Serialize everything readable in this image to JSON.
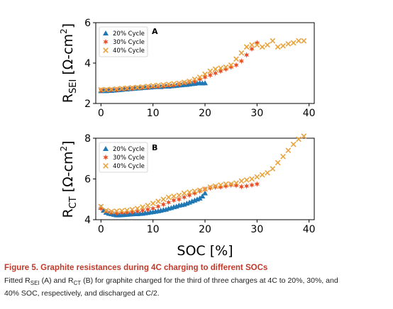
{
  "caption": {
    "title": "Figure 5.  Graphite resistances during 4C charging to different SOCs",
    "body_line1_pre": "Fitted R",
    "sub_sei": "SEI",
    "body_line1_mid": " (A) and R",
    "sub_ct": "CT",
    "body_line1_post": " (B) for graphite charged for the third of three charges at 4C to 20%, 30%, and",
    "body_line2": "40% SOC, respectively, and discharged at C/2."
  },
  "colors": {
    "c20": "#1f77b4",
    "c30": "#e8522a",
    "c40": "#e8a33d"
  },
  "chart_data": [
    {
      "type": "scatter",
      "panel_label": "A",
      "ylabel_main": "R",
      "ylabel_sub": "SEI",
      "ylabel_unit": " [Ω-cm",
      "ylabel_sup": "2",
      "ylabel_close": "]",
      "xlabel": "",
      "xlim": [
        -1,
        41
      ],
      "ylim": [
        2,
        6
      ],
      "xticks": [
        "0",
        "10",
        "20",
        "30",
        "40"
      ],
      "xtick_values": [
        0,
        10,
        20,
        30,
        40
      ],
      "yticks": [
        "2",
        "4",
        "6"
      ],
      "ytick_values": [
        2,
        4,
        6
      ],
      "legend_position": "top-left",
      "series": [
        {
          "name": "20% Cycle",
          "marker": "triangle",
          "color": "#1f77b4",
          "x": [
            0,
            0.5,
            1,
            1.5,
            2,
            2.5,
            3,
            3.5,
            4,
            4.5,
            5,
            5.5,
            6,
            6.5,
            7,
            7.5,
            8,
            8.5,
            9,
            9.5,
            10,
            10.5,
            11,
            11.5,
            12,
            12.5,
            13,
            13.5,
            14,
            14.5,
            15,
            15.5,
            16,
            16.5,
            17,
            17.5,
            18,
            18.5,
            19,
            19.5,
            20
          ],
          "y": [
            2.62,
            2.63,
            2.62,
            2.64,
            2.63,
            2.65,
            2.66,
            2.67,
            2.68,
            2.7,
            2.7,
            2.72,
            2.73,
            2.74,
            2.75,
            2.76,
            2.77,
            2.78,
            2.79,
            2.8,
            2.81,
            2.82,
            2.83,
            2.82,
            2.84,
            2.85,
            2.84,
            2.86,
            2.87,
            2.88,
            2.9,
            2.91,
            2.92,
            2.93,
            2.95,
            2.97,
            2.98,
            3.0,
            3.02,
            3.0,
            3.01
          ]
        },
        {
          "name": "30% Cycle",
          "marker": "star",
          "color": "#e8522a",
          "x": [
            0,
            1,
            2,
            3,
            4,
            5,
            6,
            7,
            8,
            9,
            10,
            11,
            12,
            13,
            14,
            15,
            16,
            17,
            18,
            19,
            20,
            21,
            22,
            23,
            24,
            25,
            26,
            27,
            28,
            29,
            30
          ],
          "y": [
            2.65,
            2.66,
            2.67,
            2.68,
            2.7,
            2.72,
            2.74,
            2.76,
            2.78,
            2.8,
            2.82,
            2.84,
            2.86,
            2.88,
            2.9,
            2.95,
            3.0,
            3.05,
            3.1,
            3.2,
            3.3,
            3.4,
            3.5,
            3.6,
            3.7,
            3.8,
            3.9,
            4.1,
            4.4,
            4.7,
            5.0
          ]
        },
        {
          "name": "40% Cycle",
          "marker": "x",
          "color": "#e8a33d",
          "x": [
            0,
            1,
            2,
            3,
            4,
            5,
            6,
            7,
            8,
            9,
            10,
            11,
            12,
            13,
            14,
            15,
            16,
            17,
            18,
            19,
            20,
            21,
            22,
            23,
            24,
            25,
            26,
            27,
            28,
            29,
            30,
            31,
            32,
            33,
            34,
            35,
            36,
            37,
            38,
            39
          ],
          "y": [
            2.68,
            2.69,
            2.7,
            2.72,
            2.74,
            2.76,
            2.78,
            2.8,
            2.82,
            2.85,
            2.88,
            2.9,
            2.92,
            2.95,
            2.98,
            3.0,
            3.05,
            3.1,
            3.2,
            3.3,
            3.45,
            3.6,
            3.7,
            3.75,
            3.8,
            3.9,
            4.2,
            4.5,
            4.8,
            4.9,
            4.9,
            4.8,
            4.9,
            5.1,
            4.8,
            4.85,
            4.95,
            5.0,
            5.1,
            5.1
          ]
        }
      ]
    },
    {
      "type": "scatter",
      "panel_label": "B",
      "ylabel_main": "R",
      "ylabel_sub": "CT",
      "ylabel_unit": " [Ω-cm",
      "ylabel_sup": "2",
      "ylabel_close": "]",
      "xlabel": "SOC [%]",
      "xlim": [
        -1,
        41
      ],
      "ylim": [
        4,
        8
      ],
      "xticks": [
        "0",
        "10",
        "20",
        "30",
        "40"
      ],
      "xtick_values": [
        0,
        10,
        20,
        30,
        40
      ],
      "yticks": [
        "4",
        "6",
        "8"
      ],
      "ytick_values": [
        4,
        6,
        8
      ],
      "legend_position": "top-left",
      "series": [
        {
          "name": "20% Cycle",
          "marker": "triangle",
          "color": "#1f77b4",
          "x": [
            0,
            0.5,
            1,
            1.5,
            2,
            2.5,
            3,
            3.5,
            4,
            4.5,
            5,
            5.5,
            6,
            6.5,
            7,
            7.5,
            8,
            8.5,
            9,
            9.5,
            10,
            10.5,
            11,
            11.5,
            12,
            12.5,
            13,
            13.5,
            14,
            14.5,
            15,
            15.5,
            16,
            16.5,
            17,
            17.5,
            18,
            18.5,
            19,
            19.5,
            20
          ],
          "y": [
            4.6,
            4.45,
            4.35,
            4.3,
            4.28,
            4.25,
            4.22,
            4.22,
            4.23,
            4.24,
            4.25,
            4.26,
            4.27,
            4.28,
            4.28,
            4.29,
            4.3,
            4.32,
            4.34,
            4.36,
            4.38,
            4.4,
            4.42,
            4.45,
            4.48,
            4.5,
            4.55,
            4.58,
            4.62,
            4.65,
            4.7,
            4.72,
            4.75,
            4.8,
            4.85,
            4.9,
            4.95,
            5.0,
            5.05,
            5.15,
            5.3
          ]
        },
        {
          "name": "30% Cycle",
          "marker": "star",
          "color": "#e8522a",
          "x": [
            0,
            1,
            2,
            3,
            4,
            5,
            6,
            7,
            8,
            9,
            10,
            11,
            12,
            13,
            14,
            15,
            16,
            17,
            18,
            19,
            20,
            21,
            22,
            23,
            24,
            25,
            26,
            27,
            28,
            29,
            30
          ],
          "y": [
            4.55,
            4.4,
            4.35,
            4.33,
            4.34,
            4.36,
            4.38,
            4.4,
            4.45,
            4.5,
            4.55,
            4.65,
            4.75,
            4.85,
            4.95,
            5.0,
            5.1,
            5.2,
            5.3,
            5.4,
            5.5,
            5.55,
            5.6,
            5.6,
            5.65,
            5.7,
            5.68,
            5.62,
            5.65,
            5.7,
            5.75
          ]
        },
        {
          "name": "40% Cycle",
          "marker": "x",
          "color": "#e8a33d",
          "x": [
            0,
            1,
            2,
            3,
            4,
            5,
            6,
            7,
            8,
            9,
            10,
            11,
            12,
            13,
            14,
            15,
            16,
            17,
            18,
            19,
            20,
            21,
            22,
            23,
            24,
            25,
            26,
            27,
            28,
            29,
            30,
            31,
            32,
            33,
            34,
            35,
            36,
            37,
            38,
            39
          ],
          "y": [
            4.65,
            4.45,
            4.4,
            4.42,
            4.44,
            4.46,
            4.5,
            4.55,
            4.62,
            4.7,
            4.8,
            4.9,
            5.0,
            5.1,
            5.15,
            5.2,
            5.3,
            5.35,
            5.4,
            5.45,
            5.5,
            5.6,
            5.65,
            5.7,
            5.75,
            5.75,
            5.8,
            5.9,
            5.95,
            6.0,
            6.1,
            6.2,
            6.3,
            6.5,
            6.8,
            7.1,
            7.4,
            7.7,
            7.95,
            8.1
          ]
        }
      ]
    }
  ]
}
